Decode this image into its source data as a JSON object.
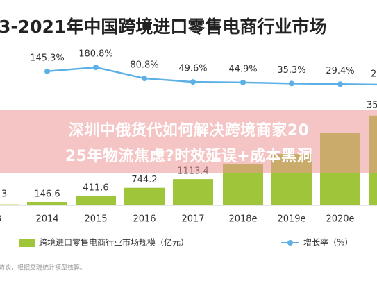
{
  "chart_data": {
    "type": "bar",
    "title": "3-2021年中国跨境进口零售电商行业市场",
    "categories": [
      "3",
      "2014",
      "2015",
      "2016",
      "2017",
      "2018e",
      "2019e",
      "2020e",
      null
    ],
    "series": [
      {
        "name": "跨境进口零售电商行业市场规模（亿元）",
        "type": "bar",
        "color": "#9fc63b",
        "values": [
          40,
          146.6,
          411.6,
          744.2,
          1113.4,
          1735,
          2176,
          3060,
          3800
        ],
        "value_labels": [
          null,
          "146.6",
          "411.6",
          "744.2",
          "1113.4",
          null,
          null,
          null,
          null
        ]
      },
      {
        "name": "增长率（%）",
        "type": "line",
        "axis": "y2",
        "color": "#5cb0e5",
        "values": [
          null,
          145.3,
          180.8,
          80.8,
          49.6,
          44.9,
          35.3,
          29.4,
          25
        ],
        "value_labels": [
          null,
          "145.3%",
          "180.8%",
          "80.8%",
          "49.6%",
          "44.9%",
          "35.3%",
          "29.4%",
          null
        ]
      }
    ],
    "ylim": [
      0,
      7000
    ],
    "y2lim": [
      -1062.5,
      425
    ],
    "fragments": [
      "3",
      "2",
      "35"
    ],
    "source": "访谈，根据艾瑞统计模型核算。"
  },
  "overlay": {
    "lines": [
      "深圳中俄货代如何解决跨境商家20",
      "25年物流焦虑?时效延误+成本黑洞"
    ]
  }
}
